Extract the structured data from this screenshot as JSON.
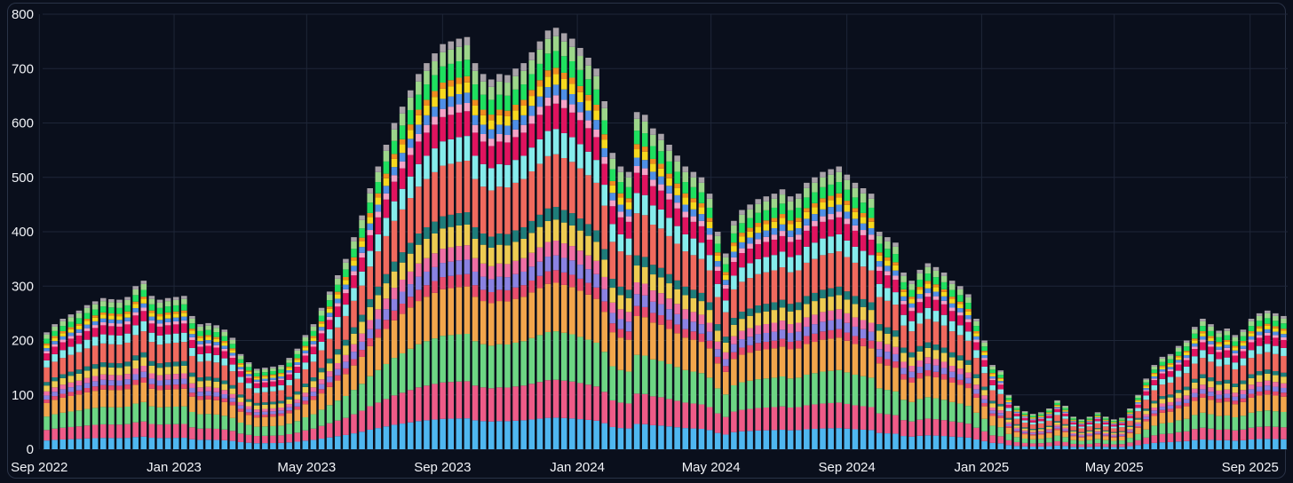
{
  "chart_data": {
    "type": "bar",
    "stacked": true,
    "title": "",
    "xlabel": "",
    "ylabel": "",
    "ylim": [
      0,
      800
    ],
    "yticks": [
      0,
      100,
      200,
      300,
      400,
      500,
      600,
      700,
      800
    ],
    "xtick_labels": [
      "Sep 2022",
      "Jan 2023",
      "May 2023",
      "Sep 2023",
      "Jan 2024",
      "May 2024",
      "Sep 2024",
      "Jan 2025",
      "May 2025",
      "Sep 2025"
    ],
    "grid": true,
    "legend": "none",
    "x_start": "2022-09-04",
    "x_end": "2025-10-05",
    "period": "weekly",
    "totals": [
      215,
      230,
      240,
      248,
      255,
      265,
      272,
      278,
      276,
      275,
      280,
      300,
      310,
      282,
      275,
      278,
      280,
      282,
      245,
      230,
      232,
      228,
      220,
      205,
      175,
      160,
      148,
      150,
      152,
      155,
      168,
      185,
      210,
      230,
      260,
      290,
      320,
      350,
      390,
      430,
      480,
      520,
      560,
      600,
      630,
      660,
      690,
      710,
      728,
      745,
      750,
      755,
      758,
      710,
      690,
      680,
      690,
      688,
      700,
      710,
      730,
      750,
      770,
      775,
      765,
      755,
      738,
      720,
      700,
      640,
      545,
      520,
      510,
      620,
      615,
      590,
      580,
      560,
      540,
      520,
      510,
      500,
      470,
      400,
      360,
      420,
      440,
      450,
      460,
      465,
      470,
      478,
      465,
      470,
      490,
      500,
      510,
      515,
      520,
      505,
      490,
      480,
      470,
      400,
      390,
      380,
      325,
      310,
      330,
      342,
      335,
      325,
      310,
      300,
      285,
      240,
      200,
      155,
      145,
      100,
      80,
      70,
      65,
      68,
      75,
      90,
      80,
      60,
      55,
      60,
      68,
      60,
      55,
      58,
      75,
      100,
      130,
      155,
      170,
      175,
      190,
      200,
      225,
      240,
      230,
      218,
      222,
      210,
      220,
      240,
      250,
      255,
      250,
      245
    ],
    "series_colors": [
      "#4fb7f0",
      "#ee5b88",
      "#6dd684",
      "#f2a64c",
      "#e84c6d",
      "#8a82e2",
      "#ef6fa4",
      "#eecc52",
      "#1f7d7a",
      "#f06a5e",
      "#86ecec",
      "#e0135f",
      "#f5a3c7",
      "#4f8fe6",
      "#f7d91e",
      "#f08c20",
      "#1fe05f",
      "#9cd68a",
      "#a8a2a8"
    ],
    "series_shares": [
      0.075,
      0.09,
      0.115,
      0.115,
      0.03,
      0.035,
      0.035,
      0.05,
      0.03,
      0.125,
      0.06,
      0.06,
      0.02,
      0.025,
      0.025,
      0.015,
      0.04,
      0.035,
      0.02
    ]
  }
}
